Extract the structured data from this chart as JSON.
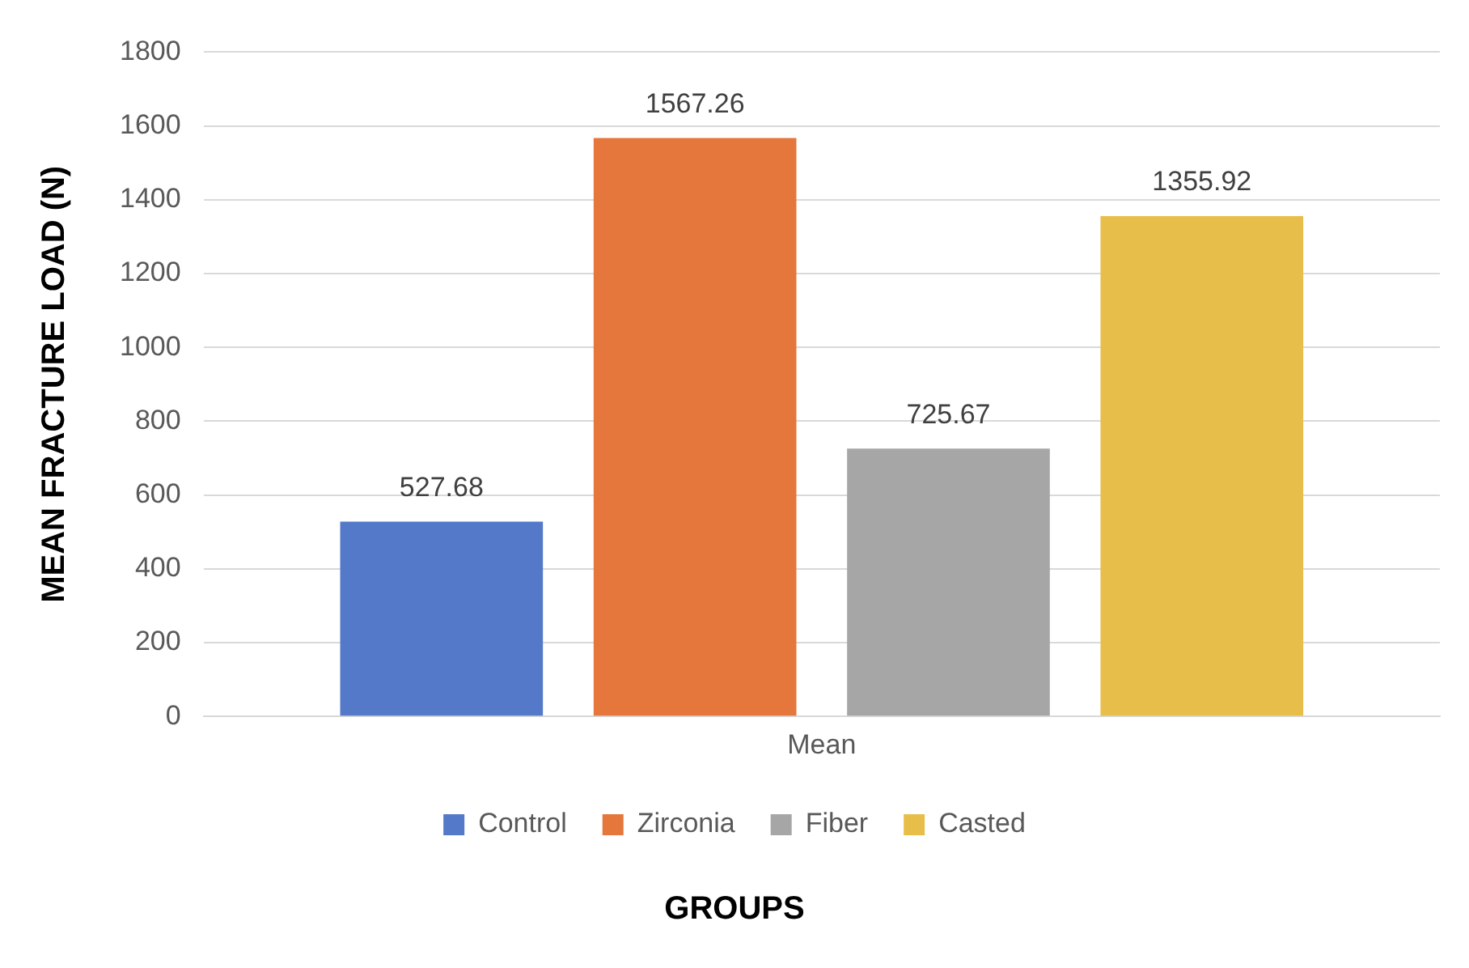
{
  "chart_data": {
    "type": "bar",
    "xlabel": "GROUPS",
    "ylabel": "MEAN FRACTURE LOAD (N)",
    "categories": [
      "Mean"
    ],
    "series": [
      {
        "name": "Control",
        "color": "#5479c9",
        "values": [
          527.68
        ]
      },
      {
        "name": "Zirconia",
        "color": "#e5773c",
        "values": [
          1567.26
        ]
      },
      {
        "name": "Fiber",
        "color": "#a6a6a6",
        "values": [
          725.67
        ]
      },
      {
        "name": "Casted",
        "color": "#e8be4b",
        "values": [
          1355.92
        ]
      }
    ],
    "ylim": [
      0,
      1800
    ],
    "yticks": [
      0,
      200,
      400,
      600,
      800,
      1000,
      1200,
      1400,
      1600,
      1800
    ],
    "grid": "y",
    "legend": "bottom",
    "data_labels": true
  }
}
